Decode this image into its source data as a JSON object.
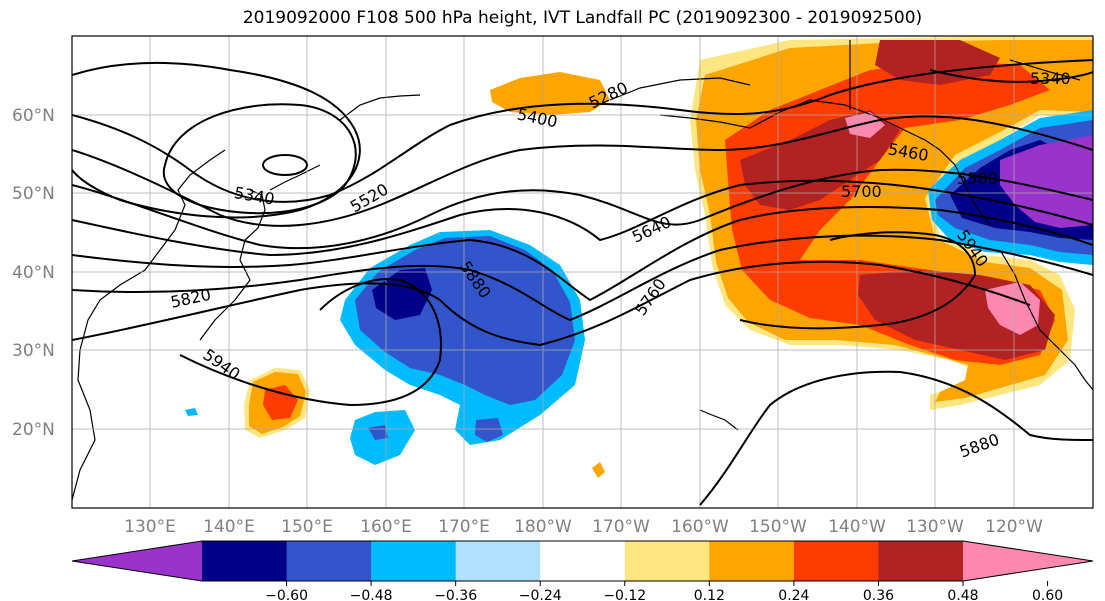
{
  "title": "2019092000 F108 500 hPa height, IVT Landfall PC (2019092300 - 2019092500)",
  "map": {
    "lat_labels": [
      "60°N",
      "50°N",
      "40°N",
      "30°N",
      "20°N"
    ],
    "lon_labels": [
      "130°E",
      "140°E",
      "150°E",
      "160°E",
      "170°E",
      "180°W",
      "170°W",
      "160°W",
      "150°W",
      "140°W",
      "130°W",
      "120°W"
    ],
    "contour_labels": [
      "5280",
      "5340",
      "5400",
      "5340",
      "5520",
      "5460",
      "5580",
      "5640",
      "5700",
      "5760",
      "5820",
      "5880",
      "5940",
      "5940",
      "5880"
    ]
  },
  "colorbar": {
    "ticks": [
      "−0.60",
      "−0.48",
      "−0.36",
      "−0.24",
      "−0.12",
      "0.12",
      "0.24",
      "0.36",
      "0.48",
      "0.60"
    ],
    "colors": [
      "#9933cc",
      "#000088",
      "#3355cc",
      "#00bbff",
      "#b0e2ff",
      "#ffffff",
      "#ffe680",
      "#ffa500",
      "#ff3c00",
      "#b22222",
      "#ff88b0"
    ]
  }
}
